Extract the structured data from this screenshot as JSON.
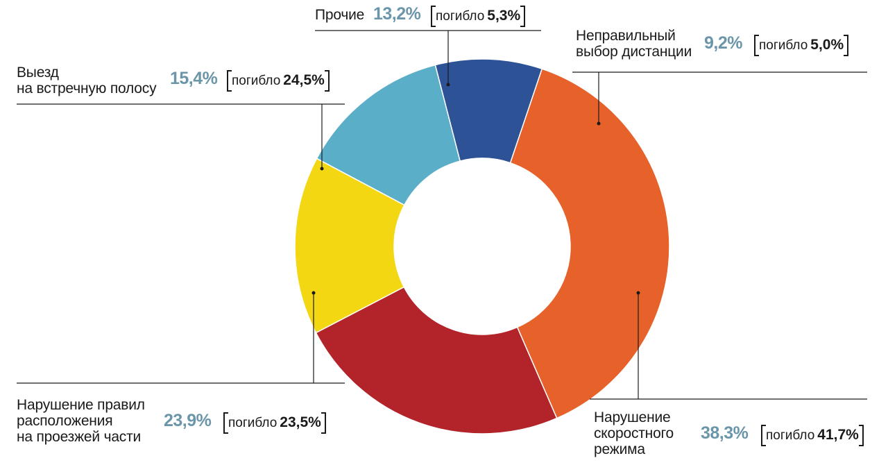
{
  "chart_data": {
    "type": "pie",
    "donut": true,
    "categories": [
      [
        "Нарушение",
        "скоростного",
        "режима"
      ],
      [
        "Нарушение правил",
        "расположения",
        "на проезжей части"
      ],
      [
        "Выезд",
        "на встречную полосу"
      ],
      [
        "Прочие"
      ],
      [
        "Неправильный",
        "выбор дистанции"
      ]
    ],
    "values": [
      38.3,
      23.9,
      15.4,
      13.2,
      9.2
    ],
    "value_labels": [
      "38,3%",
      "23,9%",
      "15,4%",
      "13,2%",
      "9,2%"
    ],
    "deaths_word": "погибло",
    "deaths_labels": [
      "41,7%",
      "23,5%",
      "24,5%",
      "5,3%",
      "5,0%"
    ],
    "colors": [
      "#e6622a",
      "#b3242a",
      "#f4d713",
      "#5aaec8",
      "#2d5396"
    ],
    "value_color": "#6b96aa"
  }
}
